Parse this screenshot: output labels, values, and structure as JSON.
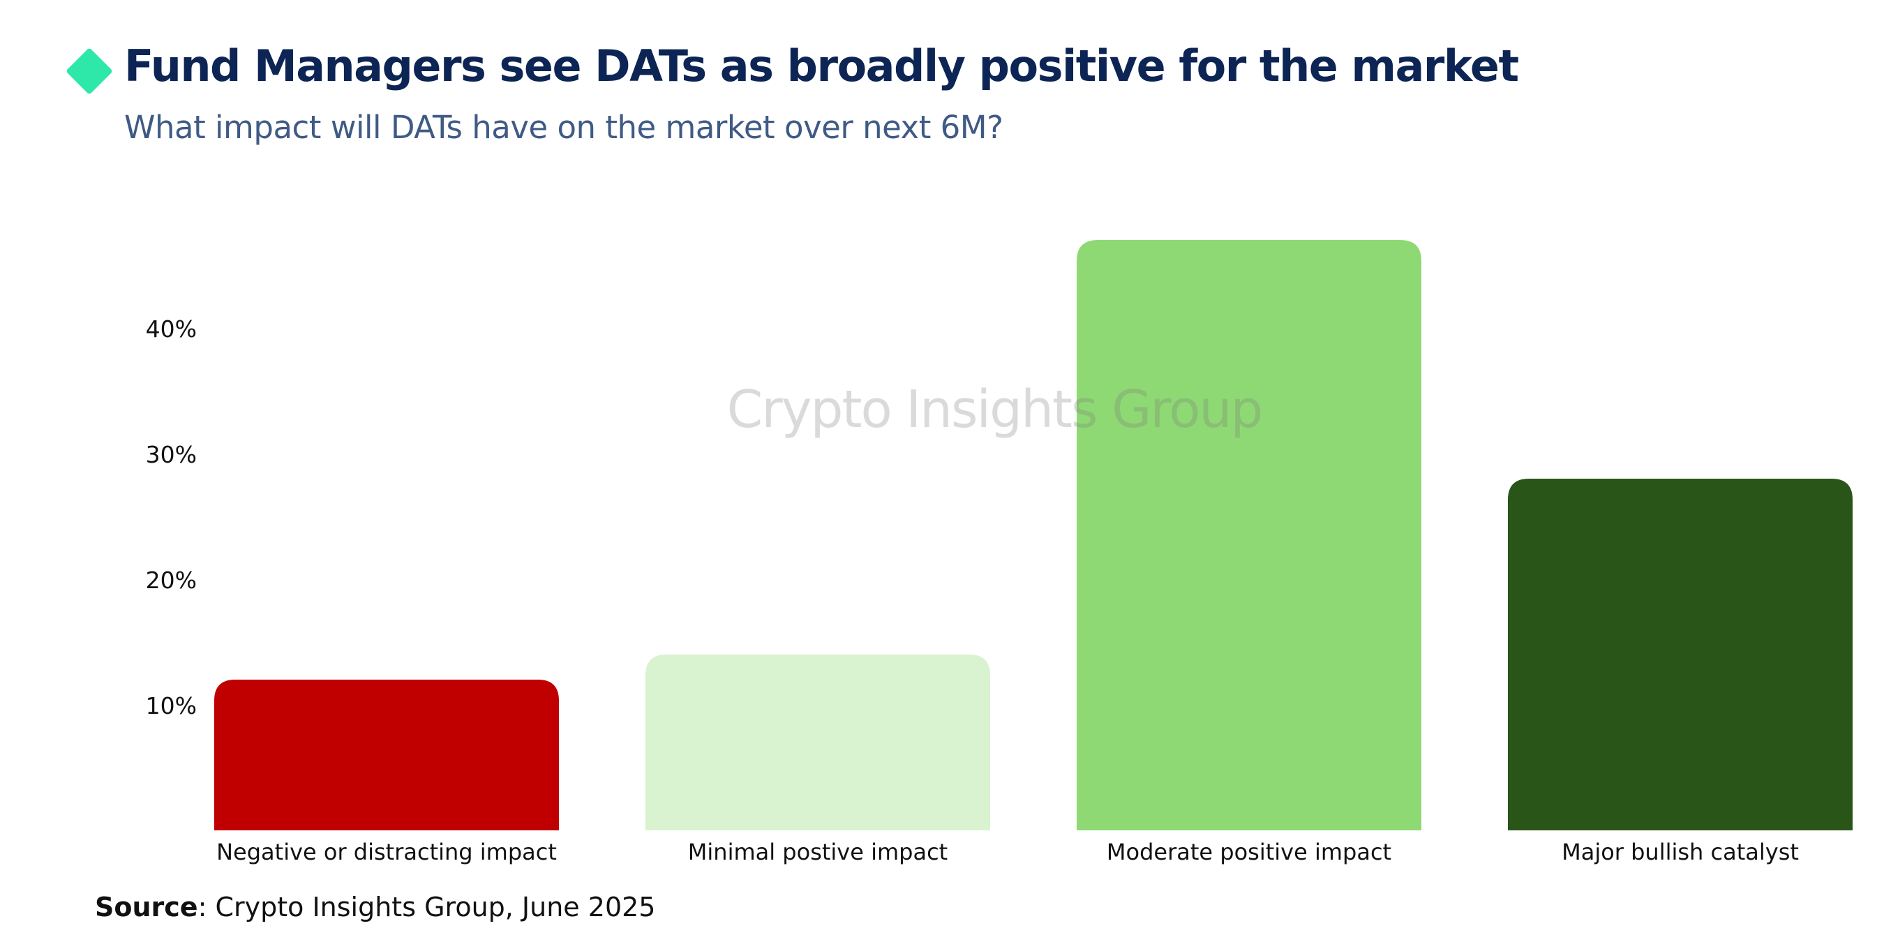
{
  "header": {
    "title": "Fund Managers see DATs as broadly positive for the market",
    "subtitle": "What impact will DATs have on the market over next 6M?",
    "icon": "diamond-icon",
    "accent_color": "#2de8a8"
  },
  "watermark": "Crypto Insights Group",
  "source": {
    "label": "Source",
    "text": ": Crypto Insights Group, June 2025"
  },
  "chart_data": {
    "type": "bar",
    "title": "Fund Managers see DATs as broadly positive for the market",
    "subtitle": "What impact will DATs have on the market over next 6M?",
    "categories": [
      "Negative or distracting impact",
      "Minimal postive impact",
      "Moderate positive impact",
      "Major bullish catalyst"
    ],
    "values": [
      12,
      14,
      47,
      28
    ],
    "colors": [
      "#c00000",
      "#d9f2d0",
      "#8fd974",
      "#2a5518"
    ],
    "ylim": [
      0,
      47
    ],
    "yticks": [
      10,
      20,
      30,
      40
    ],
    "ytick_labels": [
      "10%",
      "20%",
      "30%",
      "40%"
    ],
    "xlabel": "",
    "ylabel": "",
    "grid": false,
    "legend": "none"
  }
}
